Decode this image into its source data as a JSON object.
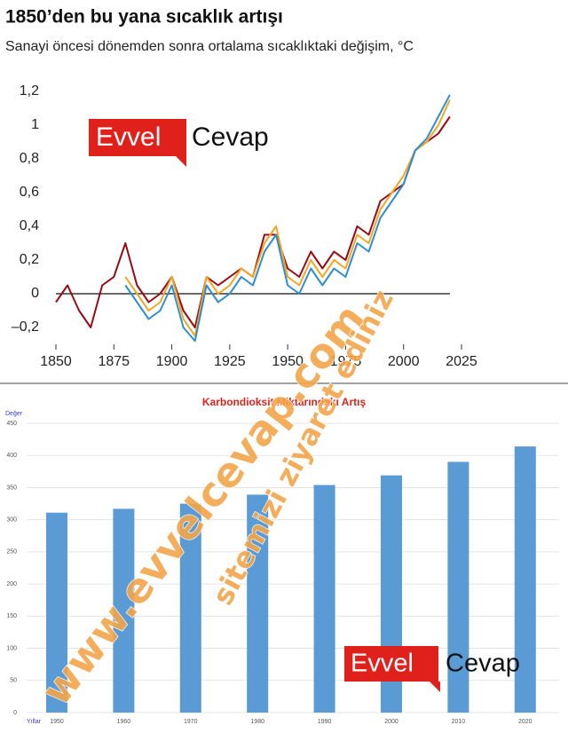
{
  "charts": [
    {
      "chart_data": {
        "type": "line",
        "title": "1850’den bu yana sıcaklık artışı",
        "subtitle": "Sanayi öncesi dönemden sonra ortalama sıcaklıktaki değişim, °C",
        "x": [
          1850,
          1855,
          1860,
          1865,
          1870,
          1875,
          1880,
          1885,
          1890,
          1895,
          1900,
          1905,
          1910,
          1915,
          1920,
          1925,
          1930,
          1935,
          1940,
          1945,
          1950,
          1955,
          1960,
          1965,
          1970,
          1975,
          1980,
          1985,
          1990,
          1995,
          2000,
          2005,
          2010,
          2015,
          2020
        ],
        "series": [
          {
            "color": "#9b0a14",
            "values": [
              -0.05,
              0.05,
              -0.1,
              -0.2,
              0.05,
              0.1,
              0.3,
              0.05,
              -0.05,
              0.0,
              0.1,
              -0.1,
              -0.2,
              0.1,
              0.05,
              0.1,
              0.15,
              0.1,
              0.35,
              0.35,
              0.15,
              0.1,
              0.25,
              0.15,
              0.25,
              0.2,
              0.4,
              0.35,
              0.55,
              0.6,
              0.65,
              0.85,
              0.9,
              0.95,
              1.05
            ]
          },
          {
            "color": "#f5a623",
            "values": [
              null,
              null,
              null,
              null,
              null,
              null,
              0.1,
              0.0,
              -0.1,
              -0.05,
              0.1,
              -0.15,
              -0.25,
              0.1,
              0.0,
              0.05,
              0.15,
              0.1,
              0.3,
              0.4,
              0.1,
              0.05,
              0.2,
              0.1,
              0.2,
              0.15,
              0.35,
              0.3,
              0.5,
              0.6,
              0.7,
              0.85,
              0.9,
              1.0,
              1.15
            ]
          },
          {
            "color": "#2e8fd0",
            "values": [
              null,
              null,
              null,
              null,
              null,
              null,
              0.05,
              -0.05,
              -0.15,
              -0.1,
              0.05,
              -0.2,
              -0.28,
              0.05,
              -0.05,
              0.0,
              0.1,
              0.05,
              0.25,
              0.35,
              0.05,
              0.0,
              0.15,
              0.05,
              0.15,
              0.1,
              0.3,
              0.25,
              0.45,
              0.55,
              0.65,
              0.85,
              0.92,
              1.05,
              1.18
            ]
          }
        ],
        "xlim": [
          1845,
          2030
        ],
        "xticks": [
          1850,
          1875,
          1900,
          1925,
          1950,
          1975,
          2000,
          2025
        ],
        "ylim": [
          -0.25,
          1.25
        ],
        "yticks": [
          {
            "value": 1.2,
            "label": "1,2"
          },
          1,
          {
            "value": 0.8,
            "label": "0,8"
          },
          {
            "value": 0.6,
            "label": "0,6"
          },
          {
            "value": 0.4,
            "label": "0,4"
          },
          {
            "value": 0.2,
            "label": "0,2"
          },
          0,
          {
            "value": -0.2,
            "label": "–0,2"
          }
        ]
      }
    },
    {
      "chart_data": {
        "type": "bar",
        "title": "Karbondioksit Miktarındaki Artış",
        "y_label": "Değer",
        "x_label": "Yıllar",
        "categories": [
          "1950",
          "1960",
          "1970",
          "1980",
          "1990",
          "2000",
          "2010",
          "2020"
        ],
        "values": [
          311,
          317,
          325,
          339,
          354,
          369,
          390,
          414
        ],
        "color": "#5b9bd5",
        "ylim": [
          0,
          450
        ],
        "yticks": [
          0,
          50,
          100,
          150,
          200,
          250,
          300,
          350,
          400,
          450
        ],
        "grid": true
      }
    }
  ],
  "watermarks": {
    "logo_left": "Evvel",
    "logo_right": "Cevap",
    "site": "www.evvelcevap.com",
    "invite": "sitemizi ziyaret ediniz"
  }
}
